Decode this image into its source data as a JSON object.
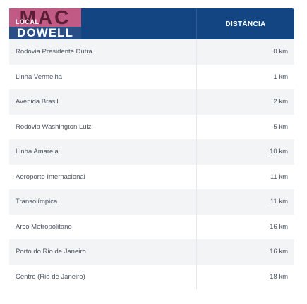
{
  "logo": {
    "top": "MAC",
    "bottom": "DOWELL",
    "overlay": "LOCAL"
  },
  "table": {
    "column_header": "DISTÂNCIA",
    "rows": [
      {
        "name": "Rodovia Presidente Dutra",
        "distance": "0 km"
      },
      {
        "name": "Linha Vermelha",
        "distance": "1 km"
      },
      {
        "name": "Avenida Brasil",
        "distance": "2 km"
      },
      {
        "name": "Rodovia Washington Luiz",
        "distance": "5 km"
      },
      {
        "name": "Linha Amarela",
        "distance": "10 km"
      },
      {
        "name": "Aeroporto Internacional",
        "distance": "11 km"
      },
      {
        "name": "Transolímpica",
        "distance": "11 km"
      },
      {
        "name": "Arco Metropolitano",
        "distance": "16 km"
      },
      {
        "name": "Porto do Rio de Janeiro",
        "distance": "16 km"
      },
      {
        "name": "Centro (Rio de Janeiro)",
        "distance": "18 km"
      }
    ]
  },
  "colors": {
    "header": "#144583",
    "row_alt": "#f3f4f6",
    "text": "#4b5563"
  }
}
